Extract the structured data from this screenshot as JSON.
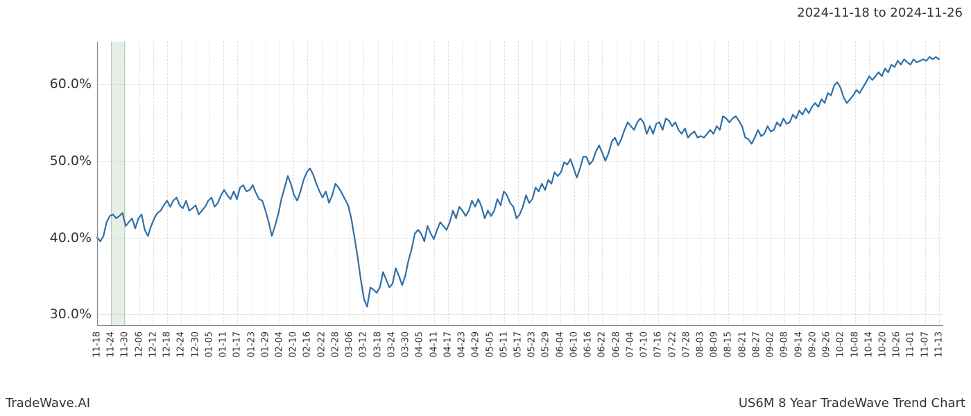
{
  "header": {
    "date_range": "2024-11-18 to 2024-11-26"
  },
  "footer": {
    "brand": "TradeWave.AI",
    "chart_title": "US6M 8 Year TradeWave Trend Chart"
  },
  "chart": {
    "type": "line",
    "background_color": "#ffffff",
    "line_color": "#2f6fa7",
    "line_width": 2.2,
    "grid_color_solid": "#e6e6e6",
    "grid_color_dash": "#dddddd",
    "axis_color": "#888888",
    "text_color": "#333333",
    "highlight_band": {
      "color": "rgba(180,210,180,0.35)",
      "from_x_index": 1,
      "to_x_index": 2
    },
    "yaxis": {
      "min": 28.5,
      "max": 65.5,
      "ticks": [
        30.0,
        40.0,
        50.0,
        60.0
      ],
      "tick_labels": [
        "30.0%",
        "40.0%",
        "50.0%",
        "60.0%"
      ],
      "label_fontsize": 19
    },
    "xaxis": {
      "ticks": [
        "11-18",
        "11-24",
        "11-30",
        "12-06",
        "12-12",
        "12-18",
        "12-24",
        "12-30",
        "01-05",
        "01-11",
        "01-17",
        "01-23",
        "01-29",
        "02-04",
        "02-10",
        "02-16",
        "02-22",
        "02-28",
        "03-06",
        "03-12",
        "03-18",
        "03-24",
        "03-30",
        "04-05",
        "04-11",
        "04-17",
        "04-23",
        "04-29",
        "05-05",
        "05-11",
        "05-17",
        "05-23",
        "05-29",
        "06-04",
        "06-10",
        "06-16",
        "06-22",
        "06-28",
        "07-04",
        "07-10",
        "07-16",
        "07-22",
        "07-28",
        "08-03",
        "08-09",
        "08-15",
        "08-21",
        "08-27",
        "09-02",
        "09-08",
        "09-14",
        "09-20",
        "09-26",
        "10-02",
        "10-08",
        "10-14",
        "10-20",
        "10-26",
        "11-01",
        "11-07",
        "11-13"
      ],
      "label_fontsize": 13,
      "rotation": -90
    },
    "series": {
      "values": [
        40.0,
        39.5,
        40.2,
        42.0,
        42.8,
        43.0,
        42.5,
        42.8,
        43.2,
        41.5,
        42.0,
        42.5,
        41.2,
        42.5,
        43.0,
        41.0,
        40.2,
        41.5,
        42.5,
        43.2,
        43.5,
        44.2,
        44.8,
        44.0,
        44.8,
        45.2,
        44.2,
        43.8,
        44.8,
        43.5,
        43.8,
        44.2,
        43.0,
        43.5,
        44.0,
        44.8,
        45.2,
        44.0,
        44.5,
        45.5,
        46.2,
        45.5,
        45.0,
        46.0,
        45.0,
        46.5,
        46.8,
        46.0,
        46.2,
        46.8,
        45.8,
        45.0,
        44.8,
        43.5,
        42.0,
        40.2,
        41.5,
        43.0,
        45.0,
        46.5,
        48.0,
        47.0,
        45.5,
        44.8,
        46.0,
        47.5,
        48.5,
        49.0,
        48.2,
        47.0,
        46.0,
        45.2,
        46.0,
        44.5,
        45.5,
        47.0,
        46.5,
        45.8,
        45.0,
        44.2,
        42.5,
        40.0,
        37.5,
        34.5,
        32.0,
        31.0,
        33.5,
        33.2,
        32.8,
        33.5,
        35.5,
        34.5,
        33.5,
        34.0,
        36.0,
        35.0,
        33.8,
        35.0,
        37.0,
        38.5,
        40.5,
        41.0,
        40.5,
        39.5,
        41.5,
        40.5,
        39.8,
        41.0,
        42.0,
        41.5,
        41.0,
        42.0,
        43.5,
        42.5,
        44.0,
        43.5,
        42.8,
        43.5,
        44.8,
        44.0,
        45.0,
        44.0,
        42.5,
        43.5,
        42.8,
        43.5,
        45.0,
        44.2,
        46.0,
        45.5,
        44.5,
        44.0,
        42.5,
        43.0,
        44.0,
        45.5,
        44.5,
        45.0,
        46.5,
        46.0,
        47.0,
        46.2,
        47.5,
        47.0,
        48.5,
        48.0,
        48.5,
        49.8,
        49.5,
        50.2,
        49.0,
        47.8,
        49.0,
        50.5,
        50.5,
        49.5,
        50.0,
        51.2,
        52.0,
        51.0,
        50.0,
        51.0,
        52.5,
        53.0,
        52.0,
        52.8,
        54.0,
        55.0,
        54.5,
        54.0,
        55.0,
        55.5,
        55.0,
        53.5,
        54.5,
        53.5,
        54.8,
        55.0,
        54.0,
        55.5,
        55.2,
        54.5,
        55.0,
        54.0,
        53.5,
        54.2,
        53.0,
        53.5,
        53.8,
        53.0,
        53.2,
        53.0,
        53.5,
        54.0,
        53.5,
        54.5,
        54.0,
        55.8,
        55.5,
        55.0,
        55.5,
        55.8,
        55.2,
        54.5,
        53.0,
        52.8,
        52.2,
        53.0,
        54.0,
        53.2,
        53.5,
        54.5,
        53.8,
        54.0,
        55.0,
        54.5,
        55.5,
        54.8,
        55.0,
        56.0,
        55.5,
        56.5,
        56.0,
        56.8,
        56.2,
        57.0,
        57.5,
        57.0,
        58.0,
        57.5,
        58.8,
        58.5,
        59.8,
        60.2,
        59.5,
        58.2,
        57.5,
        58.0,
        58.5,
        59.2,
        58.8,
        59.5,
        60.2,
        61.0,
        60.5,
        61.0,
        61.5,
        61.0,
        62.0,
        61.5,
        62.5,
        62.2,
        63.0,
        62.5,
        63.2,
        62.8,
        62.5,
        63.2,
        62.8,
        63.0,
        63.2,
        63.0,
        63.5,
        63.2,
        63.5,
        63.2
      ]
    }
  }
}
